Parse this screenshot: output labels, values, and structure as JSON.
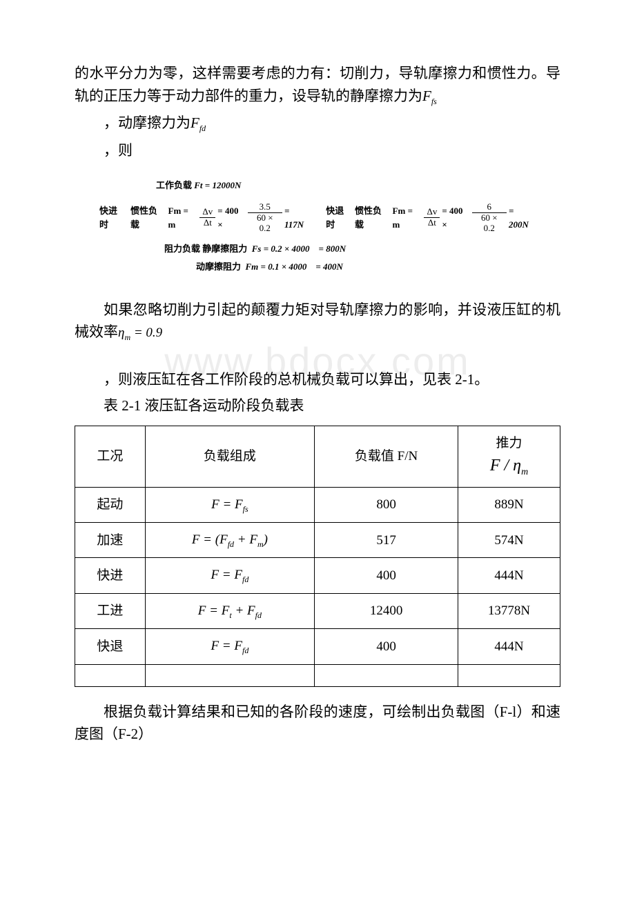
{
  "text": {
    "p1": "的水平分力为零，这样需要考虑的力有：切削力，导轨摩擦力和惯性力。导轨的正压力等于动力部件的重力，设导轨的静摩擦力为",
    "p1_sym": "F_fs",
    "p2": "，动摩擦力为",
    "p2_sym": "F_fd",
    "p3": "，则",
    "p4a": "如果忽略切削力引起的颠覆力矩对导轨摩擦力的影响，并设液压缸的机械效率",
    "p4_sym": "η_m = 0.9",
    "p5": "，则液压缸在各工作阶段的总机械负载可以算出，见表 2-1。",
    "table_caption": "表 2-1 液压缸各运动阶段负载表",
    "p6": "根据负载计算结果和已知的各阶段的速度，可绘制出负载图（F-l）和速度图（F-2）"
  },
  "eq_block": {
    "row1_label": "工作负载",
    "row1_val": "Ft = 12000N",
    "row2_left_label1": "快进时",
    "row2_left_label2": "惯性负载",
    "row2_eq_lhs": "Fm = m",
    "row2_frac1_num": "Δv",
    "row2_frac1_den": "Δt",
    "row2_mid1": "= 400 ×",
    "row2_frac2_num": "3.5",
    "row2_frac2_den": "60 × 0.2",
    "row2_eq_r1": "= 117N",
    "row2_right_label1": "快退时",
    "row2_right_label2": "惯性负载",
    "row2b_frac2_num": "6",
    "row2b_frac2_den": "60 × 0.2",
    "row2b_eq_r": "= 200N",
    "row3_label": "阻力负载 静摩擦阻力",
    "row3_val": "Fs = 0.2 × 4000 = 800N",
    "row4_label": "动摩擦阻力",
    "row4_val": "Fm = 0.1 × 4000 = 400N"
  },
  "table": {
    "headers": {
      "c1": "工况",
      "c2": "负载组成",
      "c3": "负载值 F/N",
      "c4_top": "推力",
      "c4_expr": "F / η_m"
    },
    "rows": [
      {
        "c1": "起动",
        "c2": "F = F_fs",
        "c3": "800",
        "c4": "889N"
      },
      {
        "c1": "加速",
        "c2": "F = (F_fd + F_m)",
        "c3": "517",
        "c4": "574N"
      },
      {
        "c1": "快进",
        "c2": "F = F_fd",
        "c3": "400",
        "c4": "444N"
      },
      {
        "c1": "工进",
        "c2": "F = F_t + F_fd",
        "c3": "12400",
        "c4": "13778N"
      },
      {
        "c1": "快退",
        "c2": "F = F_fd",
        "c3": "400",
        "c4": "444N"
      }
    ]
  },
  "colors": {
    "text": "#000000",
    "bg": "#ffffff",
    "border": "#000000",
    "watermark": "rgba(0,0,0,0.07)"
  },
  "watermark": "www.bdocx.com"
}
